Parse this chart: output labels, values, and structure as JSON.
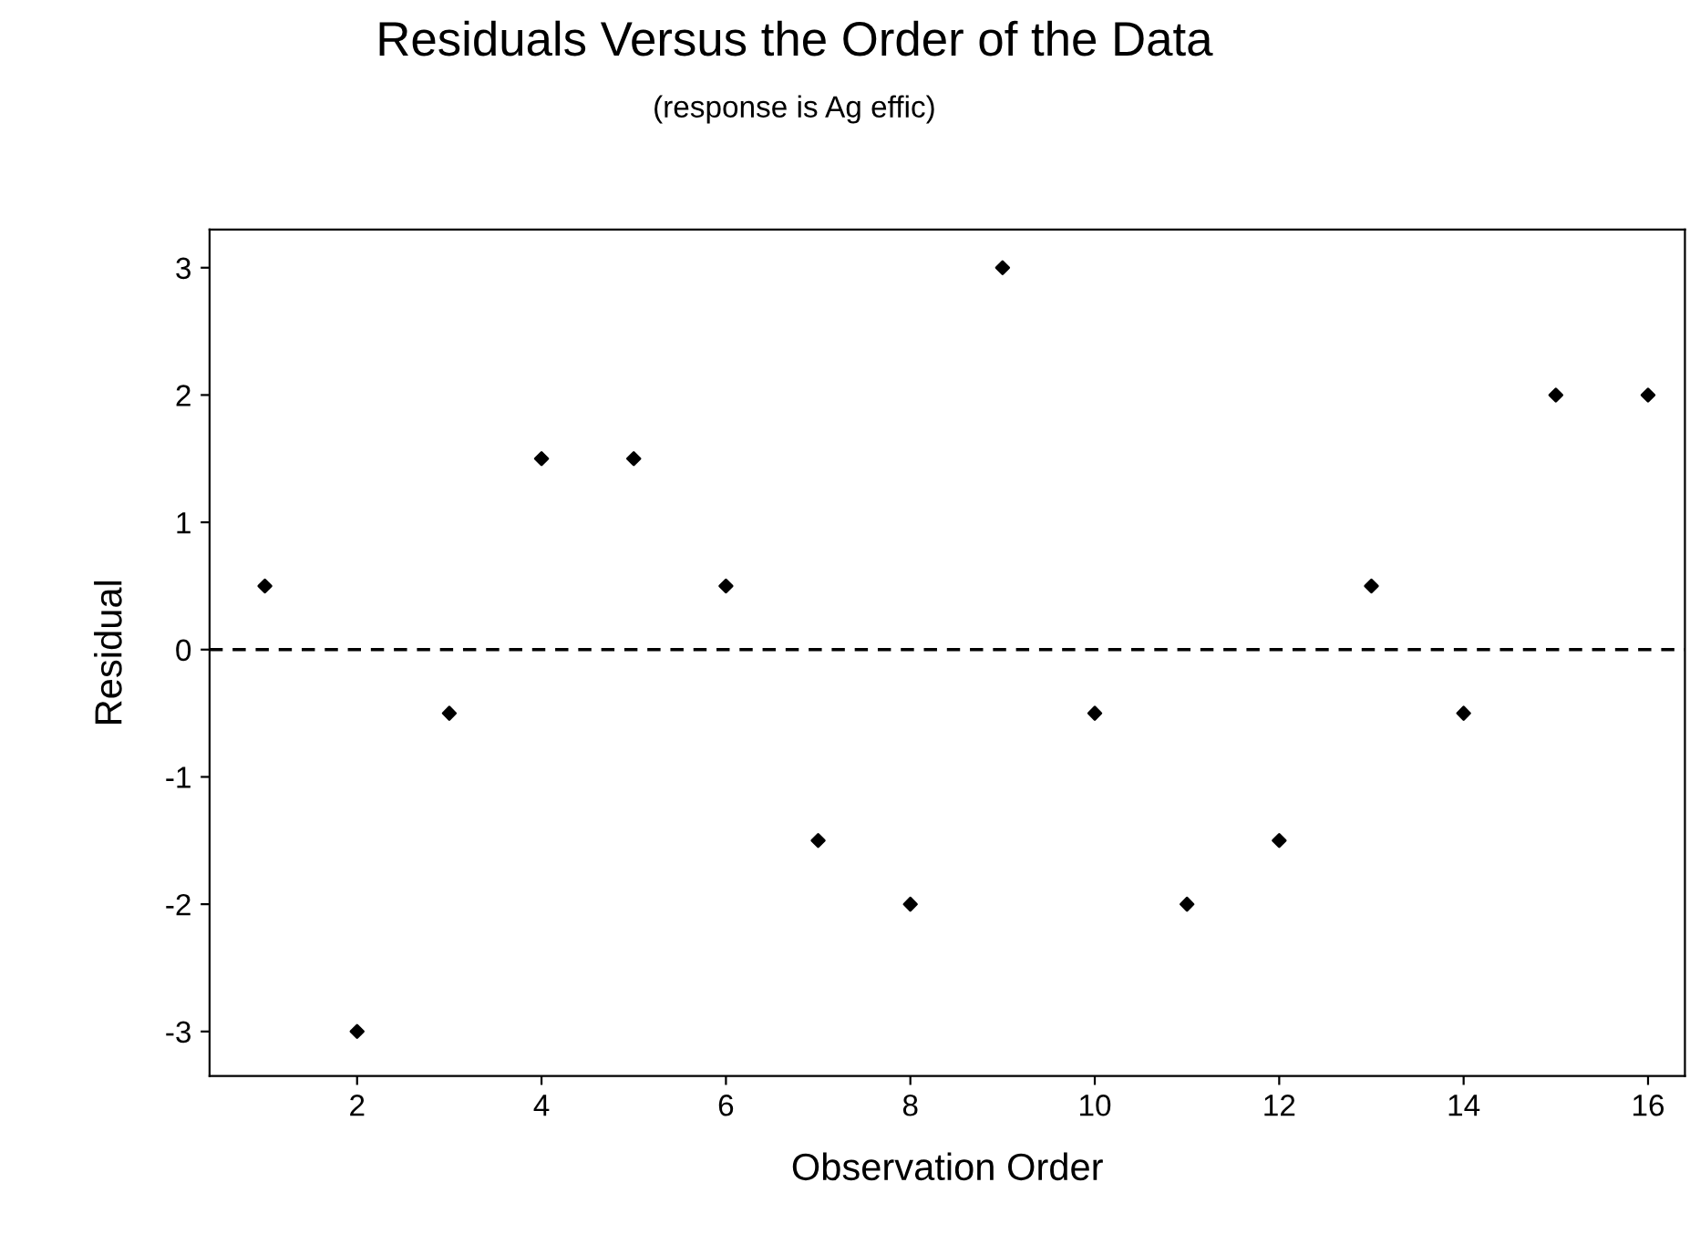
{
  "chart_data": {
    "type": "scatter",
    "title": "Residuals Versus the Order of the Data",
    "subtitle": "(response is Ag effic)",
    "xlabel": "Observation Order",
    "ylabel": "Residual",
    "x": [
      1,
      2,
      3,
      4,
      5,
      6,
      7,
      8,
      9,
      10,
      11,
      12,
      13,
      14,
      15,
      16
    ],
    "series": [
      {
        "color": "#000000",
        "values": [
          0.5,
          -3,
          -0.5,
          1.5,
          1.5,
          0.5,
          -1.5,
          -2,
          3,
          -0.5,
          -2,
          -1.5,
          0.5,
          -0.5,
          2,
          2
        ]
      }
    ],
    "xlim": [
      0.4,
      16.4
    ],
    "ylim": [
      -3.35,
      3.3
    ],
    "xticks": [
      2,
      4,
      6,
      8,
      10,
      12,
      14,
      16
    ],
    "yticks": [
      -3,
      -2,
      -1,
      0,
      1,
      2,
      3
    ],
    "ref_lines": [
      {
        "axis": "y",
        "value": 0,
        "color": "#000000",
        "line_style": "dashed"
      }
    ],
    "marker": "diamond",
    "grid": false,
    "legend": false
  }
}
